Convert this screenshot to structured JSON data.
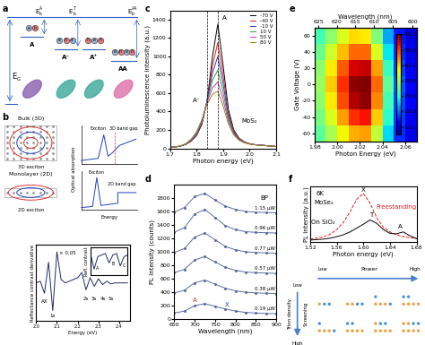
{
  "panel_labels": [
    "a",
    "b",
    "c",
    "d",
    "e",
    "f"
  ],
  "diagram_a": {
    "gap": {
      "symbol": "E",
      "sub": "G"
    },
    "states": [
      {
        "label": "A",
        "carriers": [
          "e",
          "h"
        ],
        "color": "#8a5fb0",
        "binding": {
          "symbol": "E",
          "sub": "b",
          "sup": "A"
        }
      },
      {
        "label": "A⁻",
        "carriers": [
          "e",
          "h",
          "e"
        ],
        "color": "#3aa89a",
        "binding": {
          "symbol": "E",
          "sub": "b",
          "sup": "T"
        }
      },
      {
        "label": "A⁺",
        "carriers": [
          "h",
          "e",
          "h"
        ],
        "color": "#3aa89a",
        "binding": null
      },
      {
        "label": "AA",
        "carriers": [
          "e",
          "h",
          "e",
          "h"
        ],
        "color": "#e06fa8",
        "binding": {
          "symbol": "E",
          "sub": "b",
          "sup": "AA"
        }
      }
    ]
  },
  "diagram_b": {
    "bulk": "Bulk (3D)",
    "bulk_exciton": "3D exciton",
    "monolayer": "Monolayer (2D)",
    "monolayer_exciton": "2D exciton",
    "absorption": "Optical absorption",
    "energy": "Energy",
    "exciton": "Exciton",
    "gap_3d": "3D band gap",
    "gap_2d": "2D band gap"
  },
  "diagram_f": {
    "power": "Power",
    "trion_density": "Trion density",
    "screening": "Screening",
    "low": "Low",
    "high": "High"
  },
  "chart_data": [
    {
      "type": "line",
      "x": [
        2.0,
        2.02,
        2.04,
        2.06,
        2.08,
        2.1,
        2.12,
        2.14,
        2.16,
        2.18,
        2.2,
        2.22,
        2.24,
        2.26,
        2.28,
        2.3,
        2.32,
        2.34,
        2.36,
        2.38,
        2.4,
        2.42,
        2.44
      ],
      "values": [
        0.0,
        0.05,
        -0.3,
        0.6,
        -0.8,
        0.9,
        0.1,
        0.0,
        0.05,
        0.1,
        0.15,
        0.3,
        -0.2,
        0.15,
        -0.1,
        0.12,
        -0.05,
        0.05,
        -0.03,
        0.0,
        0.0,
        0.0,
        0.0
      ],
      "color": "#1f2a6b",
      "xlim": [
        2.0,
        2.45
      ],
      "xticks": [
        2.0,
        2.1,
        2.2,
        2.3,
        2.4
      ],
      "ylim": [
        -1.1,
        1.1
      ],
      "yticks": [],
      "tick_labels": "x",
      "xlabel": "Energy (eV)",
      "ylabel": "Reflectance contrast derivative",
      "annotations": [
        {
          "text": "AX",
          "x": 2.04,
          "y": -0.55
        },
        {
          "text": "1s",
          "x": 2.08,
          "y": -0.95
        },
        {
          "text": "× 0.05",
          "x": 2.15,
          "y": 0.85
        },
        {
          "text": "2s",
          "x": 2.24,
          "y": -0.45
        },
        {
          "text": "3s",
          "x": 2.28,
          "y": -0.45
        },
        {
          "text": "4s",
          "x": 2.32,
          "y": -0.45
        },
        {
          "text": "5s",
          "x": 2.36,
          "y": -0.45
        }
      ],
      "inset": {
        "type": "line",
        "x": [
          2.0,
          2.1,
          2.2,
          2.3,
          2.4,
          2.5,
          2.6,
          2.7,
          2.8,
          2.9,
          3.0
        ],
        "values": [
          0.2,
          -0.8,
          0.0,
          0.1,
          0.2,
          -0.4,
          0.1,
          0.2,
          -0.6,
          0.0,
          0.1
        ],
        "color": "#1f2a6b",
        "xlim": [
          2.0,
          3.0
        ],
        "xticks": [],
        "ylim": [
          -1.2,
          0.6
        ],
        "yticks": [],
        "tick_labels": false,
        "ylabel": "Refl. contrast",
        "annotations": [
          {
            "text": "A",
            "x": 2.2,
            "y": -0.75
          },
          {
            "text": "B",
            "x": 2.6,
            "y": -0.45
          },
          {
            "text": "C",
            "x": 2.9,
            "y": -0.6
          }
        ]
      }
    },
    {
      "type": "line",
      "x": [
        1.7,
        1.72,
        1.74,
        1.76,
        1.78,
        1.8,
        1.82,
        1.84,
        1.86,
        1.88,
        1.9,
        1.92,
        1.94,
        1.96,
        1.98,
        2.0,
        2.02,
        2.04,
        2.06,
        2.08,
        2.1
      ],
      "series": [
        {
          "name": "-70 V",
          "color": "#000000",
          "values": [
            10,
            15,
            25,
            45,
            80,
            140,
            260,
            520,
            1000,
            1350,
            900,
            420,
            200,
            110,
            70,
            50,
            40,
            35,
            30,
            25,
            20
          ]
        },
        {
          "name": "-40 V",
          "color": "#e41a1c",
          "values": [
            10,
            15,
            25,
            45,
            80,
            145,
            270,
            520,
            900,
            1150,
            790,
            380,
            185,
            105,
            68,
            50,
            40,
            35,
            30,
            25,
            20
          ]
        },
        {
          "name": "-10 V",
          "color": "#1f3fbf",
          "values": [
            10,
            15,
            25,
            45,
            85,
            150,
            280,
            520,
            820,
            1000,
            700,
            350,
            175,
            100,
            66,
            48,
            40,
            35,
            30,
            25,
            20
          ]
        },
        {
          "name": "10 V",
          "color": "#2ca02c",
          "values": [
            10,
            15,
            25,
            48,
            90,
            160,
            290,
            510,
            740,
            850,
            610,
            320,
            165,
            96,
            64,
            48,
            40,
            34,
            30,
            25,
            20
          ]
        },
        {
          "name": "50 V",
          "color": "#d62fc8",
          "values": [
            10,
            16,
            27,
            50,
            95,
            170,
            300,
            500,
            660,
            720,
            530,
            290,
            155,
            92,
            62,
            47,
            39,
            34,
            30,
            25,
            20
          ]
        },
        {
          "name": "80 V",
          "color": "#8c8c1f",
          "values": [
            10,
            16,
            28,
            52,
            100,
            180,
            310,
            480,
            590,
            620,
            460,
            265,
            145,
            88,
            60,
            46,
            38,
            33,
            29,
            24,
            20
          ]
        }
      ],
      "xlim": [
        1.7,
        2.1
      ],
      "xticks": [
        1.7,
        1.8,
        1.9,
        2.0,
        2.1
      ],
      "ylim": [
        0,
        1500
      ],
      "yticks": [
        0,
        200,
        400,
        600,
        800,
        1000,
        1200,
        1400
      ],
      "xlabel": "Photon energy (eV)",
      "ylabel": "Photoluminescence intensity (a.u.)",
      "legend": "upper right",
      "vlines": [
        1.84,
        1.88
      ],
      "annotations": [
        {
          "text": "A",
          "x": 1.905,
          "y": 1420
        },
        {
          "text": "A⁻",
          "x": 1.8,
          "y": 520
        },
        {
          "text": "MoS₂",
          "x": 2.0,
          "y": 300
        }
      ]
    },
    {
      "type": "line",
      "x": [
        650,
        675,
        700,
        725,
        750,
        775,
        800,
        825,
        850,
        875,
        900
      ],
      "marker": "o",
      "series": [
        {
          "name": "1.15 μW",
          "color": "#5b6fa0",
          "values": [
            1590,
            1660,
            1820,
            1870,
            1770,
            1680,
            1630,
            1600,
            1590,
            1585,
            1580
          ]
        },
        {
          "name": "0.96 μW",
          "color": "#5b6fa0",
          "values": [
            1290,
            1360,
            1560,
            1630,
            1510,
            1390,
            1330,
            1300,
            1290,
            1285,
            1280
          ]
        },
        {
          "name": "0.77 μW",
          "color": "#5b6fa0",
          "values": [
            990,
            1050,
            1220,
            1280,
            1180,
            1080,
            1030,
            1000,
            990,
            985,
            980
          ]
        },
        {
          "name": "0.57 μW",
          "color": "#5b6fa0",
          "values": [
            690,
            740,
            880,
            930,
            850,
            770,
            725,
            700,
            690,
            685,
            680
          ]
        },
        {
          "name": "0.38 μW",
          "color": "#5b6fa0",
          "values": [
            390,
            430,
            540,
            580,
            520,
            460,
            420,
            400,
            390,
            385,
            380
          ]
        },
        {
          "name": "0.19 μW",
          "color": "#5b6fa0",
          "values": [
            90,
            120,
            200,
            230,
            190,
            150,
            120,
            100,
            90,
            85,
            80
          ]
        }
      ],
      "xlim": [
        650,
        900
      ],
      "xticks": [
        650,
        700,
        750,
        800,
        850,
        900
      ],
      "ylim": [
        0,
        2000
      ],
      "yticks": [
        0,
        200,
        400,
        600,
        800,
        1000,
        1200,
        1400,
        1600,
        1800
      ],
      "xlabel": "Wavelength (nm)",
      "ylabel": "PL intensity (counts)",
      "annotations": [
        {
          "text": "BP",
          "x": 870,
          "y": 1800
        },
        {
          "text": "A",
          "x": 700,
          "y": 280,
          "color": "#e02020"
        },
        {
          "text": "X",
          "x": 780,
          "y": 220,
          "color": "#2040d0"
        }
      ]
    },
    {
      "type": "heatmap",
      "x": [
        1.985,
        1.995,
        2.005,
        2.015,
        2.025,
        2.035,
        2.045,
        2.055,
        2.065
      ],
      "y": [
        -60,
        -40,
        -20,
        0,
        20,
        40,
        60
      ],
      "cells": [
        [
          300,
          360,
          420,
          470,
          480,
          380,
          220,
          110,
          60
        ],
        [
          320,
          400,
          480,
          560,
          580,
          450,
          260,
          120,
          65
        ],
        [
          340,
          430,
          540,
          620,
          640,
          500,
          280,
          130,
          70
        ],
        [
          350,
          450,
          560,
          640,
          650,
          520,
          300,
          140,
          70
        ],
        [
          340,
          430,
          530,
          600,
          610,
          480,
          270,
          125,
          65
        ],
        [
          310,
          390,
          460,
          520,
          520,
          400,
          230,
          110,
          60
        ],
        [
          280,
          340,
          400,
          440,
          430,
          330,
          190,
          95,
          55
        ]
      ],
      "xlim": [
        1.98,
        2.07
      ],
      "xticks": [
        1.98,
        {
          "value": 2.0,
          "label": "2.00"
        },
        2.02,
        2.04,
        2.06
      ],
      "x2ticks": [
        {
          "value": 1.9837,
          "label": "625"
        },
        {
          "value": 1.9997,
          "label": "620"
        },
        {
          "value": 2.016,
          "label": "615"
        },
        {
          "value": 2.0325,
          "label": "610"
        },
        {
          "value": 2.0493,
          "label": "605"
        },
        {
          "value": 2.0664,
          "label": "600"
        }
      ],
      "x2label": "Wavelength (nm)",
      "ylim": [
        -70,
        70
      ],
      "yticks": [
        -60,
        -40,
        -20,
        0,
        20,
        40,
        60
      ],
      "xlabel": "Photon Energy (eV)",
      "ylabel": "Gate Voltage (V)",
      "color_range": [
        0,
        650
      ],
      "color_ticks": [
        {
          "value": 50,
          "label": "50.0"
        },
        {
          "value": 150,
          "label": "150.0"
        },
        {
          "value": 250,
          "label": "250.0"
        },
        {
          "value": 350,
          "label": "350.0"
        },
        {
          "value": 450,
          "label": "450.0"
        },
        {
          "value": 550,
          "label": "550.0"
        },
        {
          "value": 650,
          "label": "650.0"
        }
      ]
    },
    {
      "type": "line",
      "x": [
        1.52,
        1.53,
        1.54,
        1.55,
        1.56,
        1.57,
        1.58,
        1.59,
        1.6,
        1.61,
        1.62,
        1.63,
        1.64,
        1.65,
        1.66,
        1.67,
        1.68
      ],
      "series": [
        {
          "color": "#e02020",
          "line_style": "dashed",
          "values": [
            0.05,
            0.07,
            0.1,
            0.15,
            0.25,
            0.4,
            0.62,
            0.88,
            1.0,
            0.8,
            0.5,
            0.3,
            0.2,
            0.14,
            0.1,
            0.08,
            0.06
          ]
        },
        {
          "color": "#000000",
          "line_style": "solid",
          "values": [
            0.03,
            0.04,
            0.05,
            0.07,
            0.1,
            0.14,
            0.2,
            0.28,
            0.36,
            0.45,
            0.38,
            0.25,
            0.17,
            0.16,
            0.2,
            0.12,
            0.06
          ]
        }
      ],
      "xlim": [
        1.52,
        1.68
      ],
      "xticks": [
        1.52,
        1.56,
        {
          "value": 1.6,
          "label": "1.60"
        },
        1.64,
        1.68
      ],
      "ylim": [
        0,
        1.15
      ],
      "yticks": [],
      "tick_labels": "x",
      "xlabel": "Photon energy (eV)",
      "ylabel": "PL intensity (a.u.)",
      "annotations": [
        {
          "text": "6K",
          "x": 1.535,
          "y": 1.0
        },
        {
          "text": "MoSe₂",
          "x": 1.54,
          "y": 0.82
        },
        {
          "text": "On SiO₂",
          "x": 1.54,
          "y": 0.4
        },
        {
          "text": "X",
          "x": 1.6,
          "y": 1.08
        },
        {
          "text": "T",
          "x": 1.612,
          "y": 0.56
        },
        {
          "text": "A",
          "x": 1.655,
          "y": 0.3
        },
        {
          "text": "Freestanding",
          "x": 1.65,
          "y": 0.72,
          "color": "#e02020"
        }
      ]
    }
  ]
}
